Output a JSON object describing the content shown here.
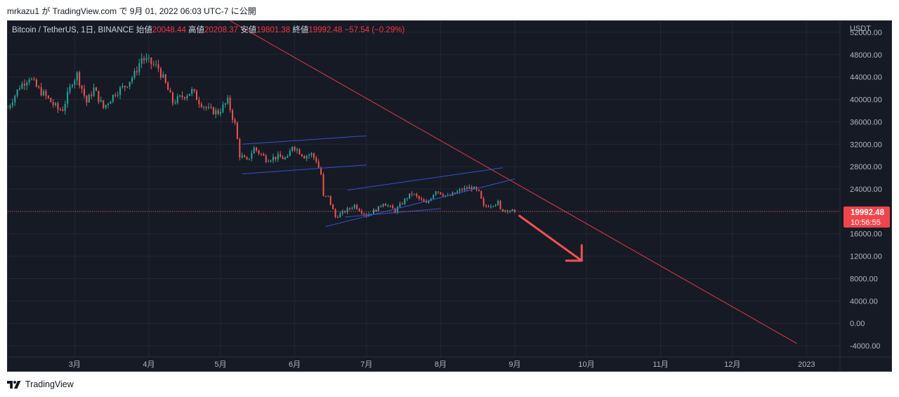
{
  "header": {
    "publish_line": "mrkazu1 が TradingView.com で 9月 01, 2022 06:03 UTC-7 に公開"
  },
  "legend": {
    "symbol": "Bitcoin / TetherUS, 1日, BINANCE",
    "open_label": "始値",
    "open": "20048.44",
    "high_label": "高値",
    "high": "20208.37",
    "low_label": "安値",
    "low": "19801.38",
    "close_label": "終値",
    "close": "19992.48",
    "change": "−57.54 (−0.29%)"
  },
  "footer": {
    "brand": "TradingView"
  },
  "colors": {
    "background": "#161a25",
    "grid": "#232734",
    "up": "#26a69a",
    "down": "#ef5350",
    "trend_red": "#e03a47",
    "channel_blue": "#3552c6",
    "price_label_bg": "#f0454b"
  },
  "chart_data": {
    "type": "candlestick",
    "symbol": "Bitcoin / TetherUS",
    "interval": "1日",
    "exchange": "BINANCE",
    "y_axis": {
      "unit": "USDT",
      "ylim": [
        -6000,
        54000
      ],
      "ticks": [
        "52000.00",
        "48000.00",
        "44000.00",
        "40000.00",
        "36000.00",
        "32000.00",
        "28000.00",
        "24000.00",
        "20000.00",
        "16000.00",
        "12000.00",
        "8000.00",
        "4000.00",
        "0.00",
        "-4000.00"
      ]
    },
    "x_axis": {
      "range": [
        "2022-02-01",
        "2023-01-15"
      ],
      "ticks": [
        {
          "label": "3月",
          "date": "2022-03-01"
        },
        {
          "label": "4月",
          "date": "2022-04-01"
        },
        {
          "label": "5月",
          "date": "2022-05-01"
        },
        {
          "label": "6月",
          "date": "2022-06-01"
        },
        {
          "label": "7月",
          "date": "2022-07-01"
        },
        {
          "label": "8月",
          "date": "2022-08-01"
        },
        {
          "label": "9月",
          "date": "2022-09-01"
        },
        {
          "label": "10月",
          "date": "2022-10-01"
        },
        {
          "label": "11月",
          "date": "2022-11-01"
        },
        {
          "label": "12月",
          "date": "2022-12-01"
        },
        {
          "label": "2023",
          "date": "2023-01-01"
        }
      ]
    },
    "grid": true,
    "price_points": [
      {
        "date": "2022-02-01",
        "close": 38500
      },
      {
        "date": "2022-02-06",
        "close": 42300
      },
      {
        "date": "2022-02-10",
        "close": 44000
      },
      {
        "date": "2022-02-13",
        "close": 42200
      },
      {
        "date": "2022-02-17",
        "close": 40500
      },
      {
        "date": "2022-02-22",
        "close": 38200
      },
      {
        "date": "2022-02-24",
        "close": 38300
      },
      {
        "date": "2022-02-28",
        "close": 43200
      },
      {
        "date": "2022-03-02",
        "close": 44500
      },
      {
        "date": "2022-03-06",
        "close": 39500
      },
      {
        "date": "2022-03-09",
        "close": 41900
      },
      {
        "date": "2022-03-13",
        "close": 38500
      },
      {
        "date": "2022-03-18",
        "close": 41200
      },
      {
        "date": "2022-03-22",
        "close": 42400
      },
      {
        "date": "2022-03-26",
        "close": 44500
      },
      {
        "date": "2022-03-29",
        "close": 47400
      },
      {
        "date": "2022-04-02",
        "close": 46400
      },
      {
        "date": "2022-04-05",
        "close": 45600
      },
      {
        "date": "2022-04-08",
        "close": 42700
      },
      {
        "date": "2022-04-11",
        "close": 39500
      },
      {
        "date": "2022-04-15",
        "close": 40500
      },
      {
        "date": "2022-04-19",
        "close": 41500
      },
      {
        "date": "2022-04-22",
        "close": 39700
      },
      {
        "date": "2022-04-26",
        "close": 38100
      },
      {
        "date": "2022-04-30",
        "close": 37700
      },
      {
        "date": "2022-05-04",
        "close": 39700
      },
      {
        "date": "2022-05-07",
        "close": 35500
      },
      {
        "date": "2022-05-09",
        "close": 30100
      },
      {
        "date": "2022-05-12",
        "close": 28900
      },
      {
        "date": "2022-05-15",
        "close": 31300
      },
      {
        "date": "2022-05-20",
        "close": 29400
      },
      {
        "date": "2022-05-25",
        "close": 29700
      },
      {
        "date": "2022-05-29",
        "close": 29400
      },
      {
        "date": "2022-05-31",
        "close": 31800
      },
      {
        "date": "2022-06-05",
        "close": 29900
      },
      {
        "date": "2022-06-08",
        "close": 30200
      },
      {
        "date": "2022-06-10",
        "close": 29100
      },
      {
        "date": "2022-06-12",
        "close": 26600
      },
      {
        "date": "2022-06-13",
        "close": 22500
      },
      {
        "date": "2022-06-15",
        "close": 22600
      },
      {
        "date": "2022-06-18",
        "close": 19000
      },
      {
        "date": "2022-06-22",
        "close": 20000
      },
      {
        "date": "2022-06-26",
        "close": 21100
      },
      {
        "date": "2022-07-01",
        "close": 19300
      },
      {
        "date": "2022-07-06",
        "close": 20600
      },
      {
        "date": "2022-07-08",
        "close": 21600
      },
      {
        "date": "2022-07-13",
        "close": 20100
      },
      {
        "date": "2022-07-18",
        "close": 22500
      },
      {
        "date": "2022-07-20",
        "close": 23200
      },
      {
        "date": "2022-07-26",
        "close": 21300
      },
      {
        "date": "2022-07-30",
        "close": 23800
      },
      {
        "date": "2022-08-04",
        "close": 22600
      },
      {
        "date": "2022-08-10",
        "close": 23900
      },
      {
        "date": "2022-08-14",
        "close": 24300
      },
      {
        "date": "2022-08-17",
        "close": 23300
      },
      {
        "date": "2022-08-19",
        "close": 20800
      },
      {
        "date": "2022-08-25",
        "close": 21600
      },
      {
        "date": "2022-08-26",
        "close": 20200
      },
      {
        "date": "2022-08-29",
        "close": 20300
      },
      {
        "date": "2022-09-01",
        "close": 19992.48
      }
    ],
    "last_price": "19992.48",
    "countdown": "10:56:55",
    "last_price_color": "#f0454b",
    "drawings": [
      {
        "kind": "trendline",
        "color": "#e03a47",
        "points": [
          {
            "date": "2022-04-27",
            "price": 56000
          },
          {
            "date": "2022-12-28",
            "price": -3600
          }
        ]
      },
      {
        "kind": "trendline",
        "color": "#3552c6",
        "points": [
          {
            "date": "2022-05-10",
            "price": 32000
          },
          {
            "date": "2022-07-01",
            "price": 33500
          }
        ]
      },
      {
        "kind": "trendline",
        "color": "#3552c6",
        "points": [
          {
            "date": "2022-05-10",
            "price": 26700
          },
          {
            "date": "2022-07-01",
            "price": 28300
          }
        ]
      },
      {
        "kind": "trendline",
        "color": "#3552c6",
        "points": [
          {
            "date": "2022-06-14",
            "price": 17300
          },
          {
            "date": "2022-09-01",
            "price": 25800
          }
        ]
      },
      {
        "kind": "trendline",
        "color": "#3552c6",
        "points": [
          {
            "date": "2022-06-23",
            "price": 23800
          },
          {
            "date": "2022-08-27",
            "price": 27800
          }
        ]
      },
      {
        "kind": "trendline",
        "color": "#3552c6",
        "points": [
          {
            "date": "2022-06-22",
            "price": 19000
          },
          {
            "date": "2022-08-01",
            "price": 20500
          }
        ]
      },
      {
        "kind": "arrow",
        "color": "#ef5350",
        "points": [
          {
            "date": "2022-09-03",
            "price": 19200
          },
          {
            "date": "2022-09-29",
            "price": 11200
          }
        ]
      }
    ]
  }
}
